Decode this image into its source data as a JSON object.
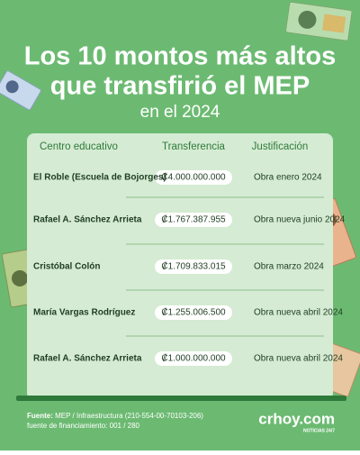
{
  "header": {
    "title": [
      "Los 10 montos más altos",
      "que transfirió el MEP"
    ],
    "subtitle": "en el 2024"
  },
  "table": {
    "columns": [
      "Centro educativo",
      "Transferencia",
      "Justificación"
    ],
    "rows": [
      [
        "El Roble (Escuela de Bojorges)",
        "₡4.000.000.000",
        "Obra enero 2024"
      ],
      [
        "Rafael A. Sánchez Arrieta",
        "₡1.767.387.955",
        "Obra nueva junio 2024"
      ],
      [
        "Cristóbal Colón",
        "₡1.709.833.015",
        "Obra marzo 2024"
      ],
      [
        "María Vargas Rodríguez",
        "₡1.255.006.500",
        "Obra nueva abril 2024"
      ],
      [
        "Rafael A. Sánchez Arrieta",
        "₡1.000.000.000",
        "Obra nueva abril 2024"
      ]
    ]
  },
  "footer": {
    "source_label": "Fuente:",
    "source": "MEP / Infraestructura (210-554-00-70103-206)",
    "funding": "fuente de financiamiento: 001 / 280"
  },
  "logo": {
    "name": "crhoy.com",
    "tagline": "NOTICIAS 24/7"
  }
}
